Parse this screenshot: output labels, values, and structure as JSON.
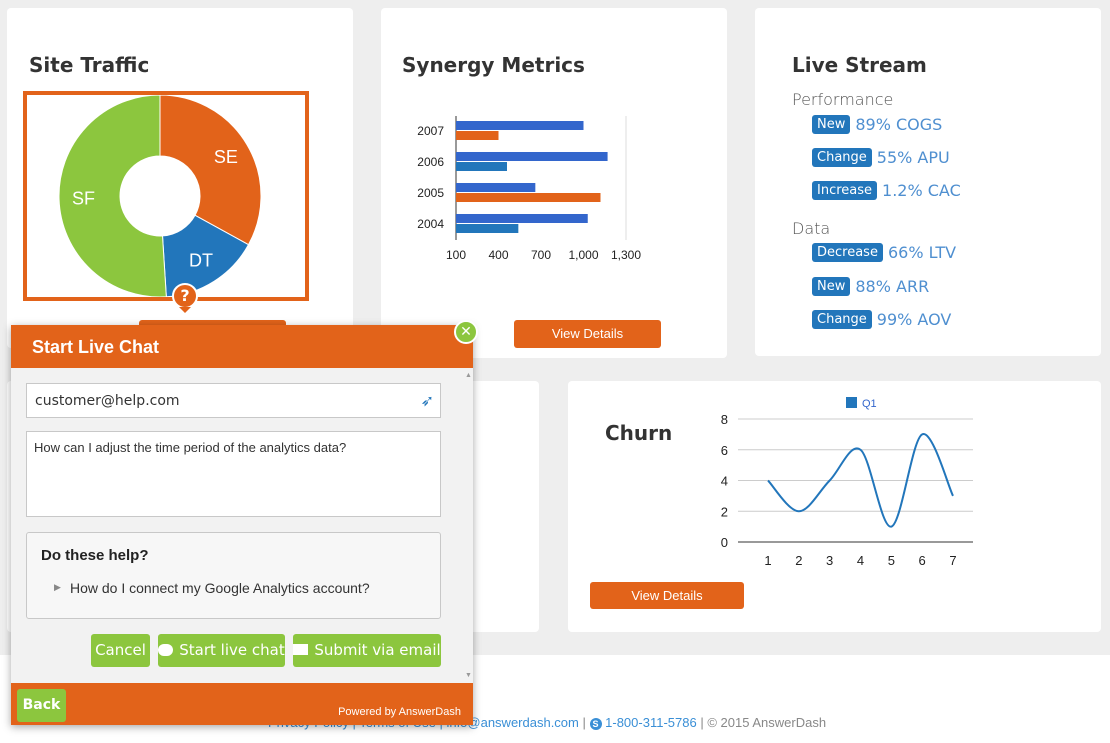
{
  "site_traffic": {
    "title": "Site Traffic",
    "chart_data": {
      "type": "pie",
      "labels": [
        "SE",
        "DT",
        "SF"
      ],
      "values": [
        33,
        16,
        51
      ],
      "colors": [
        "#e2631a",
        "#2276bb",
        "#8cc63e"
      ]
    }
  },
  "synergy": {
    "title": "Synergy Metrics",
    "button_label": "View Details",
    "chart_data": {
      "type": "bar",
      "orientation": "horizontal",
      "categories": [
        "2007",
        "2006",
        "2005",
        "2004"
      ],
      "series": [
        {
          "values": [
            1000,
            1170,
            660,
            1030
          ]
        },
        {
          "values": [
            400,
            460,
            1120,
            540
          ]
        }
      ],
      "bar_colors": [
        [
          "#3366cc",
          "#e2631a"
        ],
        [
          "#3366cc",
          "#2276bb"
        ],
        [
          "#3366cc",
          "#e2631a"
        ],
        [
          "#3366cc",
          "#2276bb"
        ]
      ],
      "xticks": [
        "100",
        "400",
        "700",
        "1,000",
        "1,300"
      ],
      "xlim": [
        100,
        1300
      ]
    }
  },
  "live_stream": {
    "title": "Live Stream",
    "sections": [
      {
        "label": "Performance",
        "items": [
          {
            "badge": "New",
            "value": "89% COGS"
          },
          {
            "badge": "Change",
            "value": "55% APU"
          },
          {
            "badge": "Increase",
            "value": "1.2% CAC"
          }
        ]
      },
      {
        "label": "Data",
        "items": [
          {
            "badge": "Decrease",
            "value": "66% LTV"
          },
          {
            "badge": "New",
            "value": "88% ARR"
          },
          {
            "badge": "Change",
            "value": "99% AOV"
          }
        ]
      }
    ]
  },
  "churn": {
    "title": "Churn",
    "button_label": "View Details",
    "chart_data": {
      "type": "line",
      "x": [
        1,
        2,
        3,
        4,
        5,
        6,
        7
      ],
      "series": [
        {
          "name": "Q1",
          "values": [
            4,
            2,
            4,
            6,
            1,
            7,
            3
          ]
        }
      ],
      "yticks": [
        "0",
        "2",
        "4",
        "6",
        "8"
      ],
      "ylim": [
        0,
        8
      ],
      "color": "#2276bb"
    }
  },
  "chat": {
    "title": "Start Live Chat",
    "email_value": "customer@help.com",
    "message_value": "How can I adjust the time period of the analytics data?",
    "help_title": "Do these help?",
    "help_link": "How do I connect my Google Analytics account?",
    "cancel_label": "Cancel",
    "start_chat_label": "Start live chat",
    "submit_email_label": "Submit via email",
    "back_label": "Back",
    "powered_by": "Powered by AnswerDash",
    "help_badge": "?"
  },
  "footer": {
    "links_hidden": "Privacy Policy | Terms of Use | info@answerdash.com",
    "separator": "|",
    "phone": "1-800-311-5786",
    "copyright": "© 2015 AnswerDash"
  }
}
